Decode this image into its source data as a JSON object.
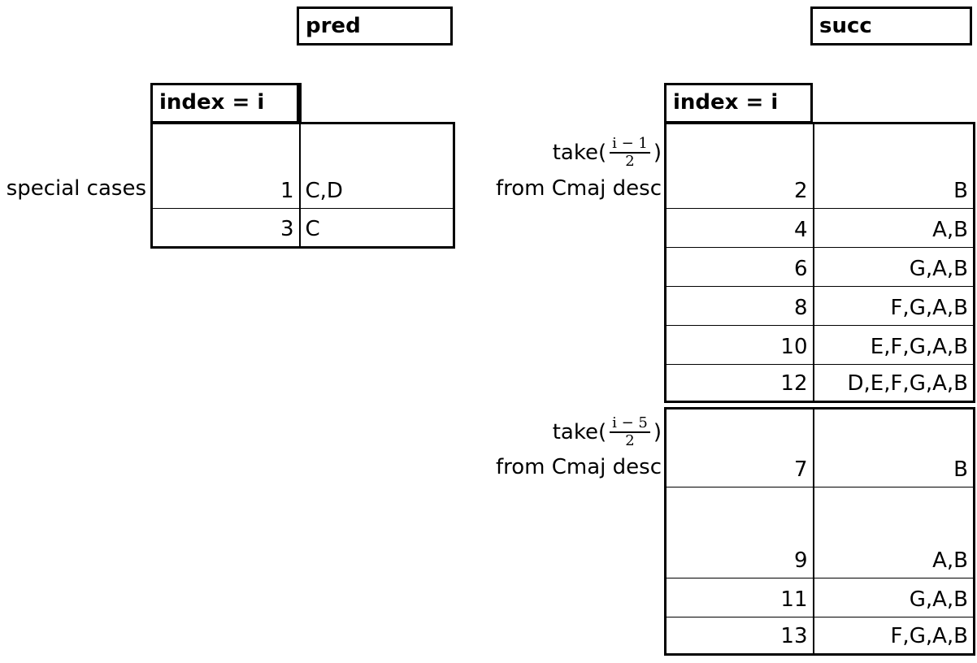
{
  "pred": {
    "title": "pred",
    "header_index": "index = i",
    "side_label": "special cases",
    "rows": [
      {
        "i": "1",
        "v": "C,D"
      },
      {
        "i": "3",
        "v": "C"
      }
    ]
  },
  "succ": {
    "title": "succ",
    "header_index": "index = i",
    "group1": {
      "take_prefix": "take(",
      "frac_num": "i − 1",
      "frac_den": "2",
      "take_suffix": ")",
      "from_text": "from Cmaj desc",
      "rows": [
        {
          "i": "2",
          "v": "B"
        },
        {
          "i": "4",
          "v": "A,B"
        },
        {
          "i": "6",
          "v": "G,A,B"
        },
        {
          "i": "8",
          "v": "F,G,A,B"
        },
        {
          "i": "10",
          "v": "E,F,G,A,B"
        },
        {
          "i": "12",
          "v": "D,E,F,G,A,B"
        }
      ]
    },
    "group2": {
      "take_prefix": "take(",
      "frac_num": "i − 5",
      "frac_den": "2",
      "take_suffix": ")",
      "from_text": "from Cmaj desc",
      "rows": [
        {
          "i": "7",
          "v": "B"
        },
        {
          "i": "9",
          "v": "A,B"
        },
        {
          "i": "11",
          "v": "G,A,B"
        },
        {
          "i": "13",
          "v": "F,G,A,B"
        }
      ]
    }
  }
}
